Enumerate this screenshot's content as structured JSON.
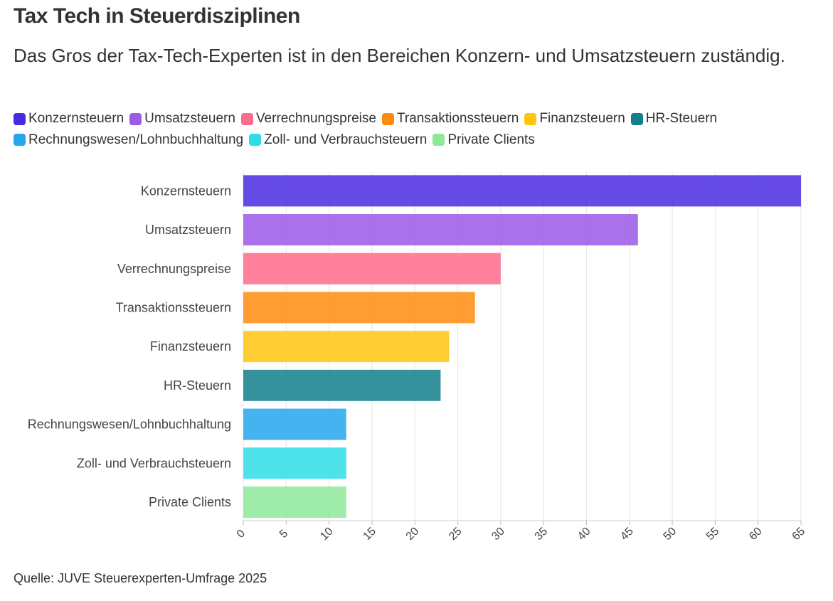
{
  "title": "Tax Tech in Steuerdisziplinen",
  "subtitle": "Das Gros der Tax-Tech-Experten ist in den Bereichen Konzern- und Umsatzsteuern zuständig.",
  "source": "Quelle: JUVE Steuerexperten-Umfrage 2025",
  "legend": [
    {
      "label": "Konzernsteuern",
      "color": "#4a2ae0"
    },
    {
      "label": "Umsatzsteuern",
      "color": "#9b59e6"
    },
    {
      "label": "Verrechnungspreise",
      "color": "#ff6b8b"
    },
    {
      "label": "Transaktionssteuern",
      "color": "#ff8c0f"
    },
    {
      "label": "Finanzsteuern",
      "color": "#ffc50f"
    },
    {
      "label": "HR-Steuern",
      "color": "#127f8c"
    },
    {
      "label": "Rechnungswesen/Lohnbuchhaltung",
      "color": "#26a6ee"
    },
    {
      "label": "Zoll- und Verbrauchsteuern",
      "color": "#2fdde6"
    },
    {
      "label": "Private Clients",
      "color": "#8ee89a"
    }
  ],
  "chart_data": {
    "type": "bar",
    "orientation": "horizontal",
    "categories": [
      "Konzernsteuern",
      "Umsatzsteuern",
      "Verrechnungspreise",
      "Transaktionssteuern",
      "Finanzsteuern",
      "HR-Steuern",
      "Rechnungswesen/Lohnbuchhaltung",
      "Zoll- und Verbrauchsteuern",
      "Private Clients"
    ],
    "values": [
      65,
      46,
      30,
      27,
      24,
      23,
      12,
      12,
      12
    ],
    "colors": [
      "#4a2ae0",
      "#9b59e6",
      "#ff6b8b",
      "#ff8c0f",
      "#ffc50f",
      "#127f8c",
      "#26a6ee",
      "#2fdde6",
      "#8ee89a"
    ],
    "xlim": [
      0,
      65
    ],
    "xticks": [
      "0",
      "5",
      "10",
      "15",
      "20",
      "25",
      "30",
      "35",
      "40",
      "45",
      "50",
      "55",
      "60",
      "65"
    ],
    "grid": true,
    "legend_position": "top"
  }
}
